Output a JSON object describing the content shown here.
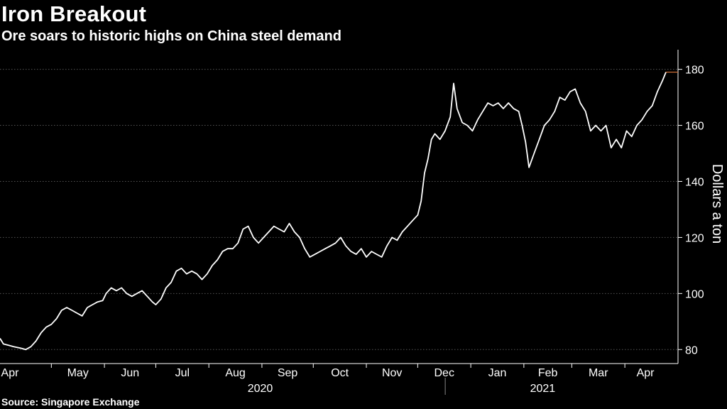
{
  "header": {
    "title": "Iron Breakout",
    "subtitle": "Ore soars to historic highs on China steel demand"
  },
  "footer": {
    "source": "Source: Singapore Exchange"
  },
  "colors": {
    "background": "#000000",
    "line": "#ffffff",
    "grid": "#555555",
    "last_value_marker": "#e0763a"
  },
  "chart_data": {
    "type": "line",
    "title": "Iron Breakout",
    "subtitle": "Ore soars to historic highs on China steel demand",
    "ylabel": "Dollars a ton",
    "xlabel": "",
    "ylim": [
      75,
      187
    ],
    "xlim": [
      "2020-04-01",
      "2021-04-25"
    ],
    "y_axis_position": "right",
    "grid": "horizontal, dotted",
    "y_ticks": [
      80,
      100,
      120,
      140,
      160,
      180
    ],
    "month_labels": [
      {
        "label": "Apr",
        "date": "2020-04-01"
      },
      {
        "label": "May",
        "date": "2020-05-01"
      },
      {
        "label": "Jun",
        "date": "2020-06-01"
      },
      {
        "label": "Jul",
        "date": "2020-07-01"
      },
      {
        "label": "Aug",
        "date": "2020-08-01"
      },
      {
        "label": "Sep",
        "date": "2020-09-01"
      },
      {
        "label": "Oct",
        "date": "2020-10-01"
      },
      {
        "label": "Nov",
        "date": "2020-11-01"
      },
      {
        "label": "Dec",
        "date": "2020-12-01"
      },
      {
        "label": "Jan",
        "date": "2021-01-01"
      },
      {
        "label": "Feb",
        "date": "2021-02-01"
      },
      {
        "label": "Mar",
        "date": "2021-03-01"
      },
      {
        "label": "Apr",
        "date": "2021-04-01"
      }
    ],
    "year_labels": [
      {
        "label": "2020",
        "date": "2020-08-31"
      },
      {
        "label": "2021",
        "date": "2021-02-12"
      }
    ],
    "series": [
      {
        "points": [
          [
            "2020-04-01",
            84
          ],
          [
            "2020-04-03",
            82
          ],
          [
            "2020-04-06",
            81.5
          ],
          [
            "2020-04-09",
            81
          ],
          [
            "2020-04-13",
            80.5
          ],
          [
            "2020-04-16",
            80
          ],
          [
            "2020-04-19",
            81
          ],
          [
            "2020-04-22",
            83
          ],
          [
            "2020-04-25",
            86
          ],
          [
            "2020-04-28",
            88
          ],
          [
            "2020-05-01",
            89
          ],
          [
            "2020-05-04",
            91
          ],
          [
            "2020-05-07",
            94
          ],
          [
            "2020-05-10",
            95
          ],
          [
            "2020-05-13",
            94
          ],
          [
            "2020-05-16",
            93
          ],
          [
            "2020-05-19",
            92
          ],
          [
            "2020-05-22",
            95
          ],
          [
            "2020-05-25",
            96
          ],
          [
            "2020-05-28",
            97
          ],
          [
            "2020-05-31",
            97.5
          ],
          [
            "2020-06-02",
            100
          ],
          [
            "2020-06-05",
            102
          ],
          [
            "2020-06-08",
            101
          ],
          [
            "2020-06-11",
            102
          ],
          [
            "2020-06-14",
            100
          ],
          [
            "2020-06-17",
            99
          ],
          [
            "2020-06-20",
            100
          ],
          [
            "2020-06-23",
            101
          ],
          [
            "2020-06-26",
            99
          ],
          [
            "2020-06-29",
            97
          ],
          [
            "2020-07-01",
            96
          ],
          [
            "2020-07-04",
            98
          ],
          [
            "2020-07-07",
            102
          ],
          [
            "2020-07-10",
            104
          ],
          [
            "2020-07-13",
            108
          ],
          [
            "2020-07-16",
            109
          ],
          [
            "2020-07-19",
            107
          ],
          [
            "2020-07-22",
            108
          ],
          [
            "2020-07-25",
            107
          ],
          [
            "2020-07-28",
            105
          ],
          [
            "2020-07-31",
            107
          ],
          [
            "2020-08-03",
            110
          ],
          [
            "2020-08-06",
            112
          ],
          [
            "2020-08-09",
            115
          ],
          [
            "2020-08-12",
            116
          ],
          [
            "2020-08-15",
            116
          ],
          [
            "2020-08-18",
            118
          ],
          [
            "2020-08-21",
            123
          ],
          [
            "2020-08-24",
            124
          ],
          [
            "2020-08-27",
            120
          ],
          [
            "2020-08-30",
            118
          ],
          [
            "2020-09-02",
            120
          ],
          [
            "2020-09-05",
            122
          ],
          [
            "2020-09-08",
            124
          ],
          [
            "2020-09-11",
            123
          ],
          [
            "2020-09-14",
            122
          ],
          [
            "2020-09-17",
            125
          ],
          [
            "2020-09-20",
            122
          ],
          [
            "2020-09-23",
            120
          ],
          [
            "2020-09-26",
            116
          ],
          [
            "2020-09-29",
            113
          ],
          [
            "2020-10-02",
            114
          ],
          [
            "2020-10-05",
            115
          ],
          [
            "2020-10-08",
            116
          ],
          [
            "2020-10-11",
            117
          ],
          [
            "2020-10-14",
            118
          ],
          [
            "2020-10-17",
            120
          ],
          [
            "2020-10-20",
            117
          ],
          [
            "2020-10-23",
            115
          ],
          [
            "2020-10-26",
            114
          ],
          [
            "2020-10-29",
            116
          ],
          [
            "2020-11-01",
            113
          ],
          [
            "2020-11-04",
            115
          ],
          [
            "2020-11-07",
            114
          ],
          [
            "2020-11-10",
            113
          ],
          [
            "2020-11-13",
            117
          ],
          [
            "2020-11-16",
            120
          ],
          [
            "2020-11-19",
            119
          ],
          [
            "2020-11-22",
            122
          ],
          [
            "2020-11-25",
            124
          ],
          [
            "2020-11-28",
            126
          ],
          [
            "2020-12-01",
            128
          ],
          [
            "2020-12-03",
            133
          ],
          [
            "2020-12-05",
            143
          ],
          [
            "2020-12-07",
            148
          ],
          [
            "2020-12-09",
            155
          ],
          [
            "2020-12-11",
            157
          ],
          [
            "2020-12-14",
            155
          ],
          [
            "2020-12-17",
            158
          ],
          [
            "2020-12-20",
            163
          ],
          [
            "2020-12-22",
            175
          ],
          [
            "2020-12-24",
            166
          ],
          [
            "2020-12-27",
            161
          ],
          [
            "2020-12-30",
            160
          ],
          [
            "2021-01-02",
            158
          ],
          [
            "2021-01-05",
            162
          ],
          [
            "2021-01-08",
            165
          ],
          [
            "2021-01-11",
            168
          ],
          [
            "2021-01-14",
            167
          ],
          [
            "2021-01-17",
            168
          ],
          [
            "2021-01-20",
            166
          ],
          [
            "2021-01-23",
            168
          ],
          [
            "2021-01-26",
            166
          ],
          [
            "2021-01-29",
            165
          ],
          [
            "2021-01-31",
            160
          ],
          [
            "2021-02-02",
            154
          ],
          [
            "2021-02-04",
            145
          ],
          [
            "2021-02-07",
            150
          ],
          [
            "2021-02-10",
            155
          ],
          [
            "2021-02-13",
            160
          ],
          [
            "2021-02-16",
            162
          ],
          [
            "2021-02-19",
            165
          ],
          [
            "2021-02-22",
            170
          ],
          [
            "2021-02-25",
            169
          ],
          [
            "2021-02-28",
            172
          ],
          [
            "2021-03-03",
            173
          ],
          [
            "2021-03-06",
            168
          ],
          [
            "2021-03-09",
            165
          ],
          [
            "2021-03-12",
            158
          ],
          [
            "2021-03-15",
            160
          ],
          [
            "2021-03-18",
            158
          ],
          [
            "2021-03-21",
            160
          ],
          [
            "2021-03-24",
            152
          ],
          [
            "2021-03-27",
            155
          ],
          [
            "2021-03-30",
            152
          ],
          [
            "2021-04-02",
            158
          ],
          [
            "2021-04-05",
            156
          ],
          [
            "2021-04-08",
            160
          ],
          [
            "2021-04-11",
            162
          ],
          [
            "2021-04-14",
            165
          ],
          [
            "2021-04-17",
            167
          ],
          [
            "2021-04-20",
            172
          ],
          [
            "2021-04-23",
            176
          ],
          [
            "2021-04-25",
            179
          ]
        ],
        "last_value": 179
      }
    ]
  }
}
